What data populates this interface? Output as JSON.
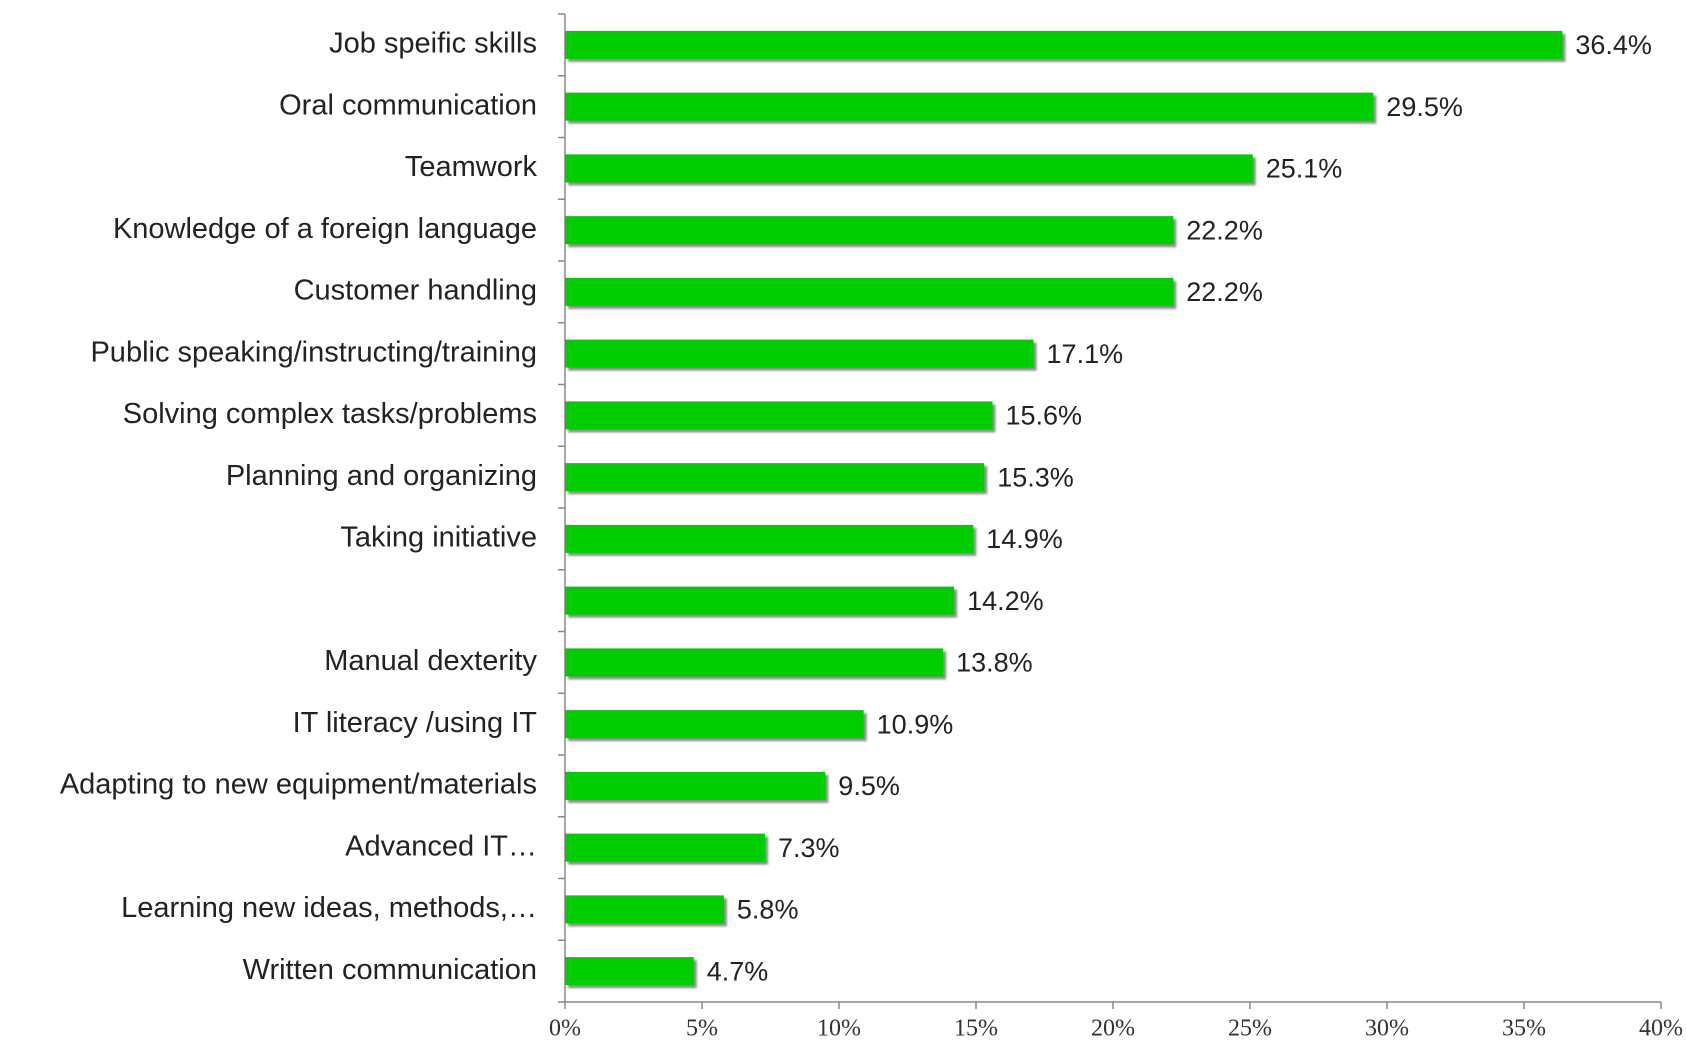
{
  "chart_data": {
    "type": "bar",
    "orientation": "horizontal",
    "categories": [
      "Job speific skills",
      "Oral communication",
      "Teamwork",
      "Knowledge of a foreign language",
      "Customer handling",
      "Public speaking/instructing/training",
      "Solving complex tasks/problems",
      "Planning and organizing",
      "Taking initiative",
      null,
      "Manual dexterity",
      "IT literacy /using IT",
      "Adapting to new equipment/materials",
      "Advanced IT…",
      "Learning new ideas, methods,…",
      "Written communication"
    ],
    "values": [
      36.4,
      29.5,
      25.1,
      22.2,
      22.2,
      17.1,
      15.6,
      15.3,
      14.9,
      14.2,
      13.8,
      10.9,
      9.5,
      7.3,
      5.8,
      4.7
    ],
    "value_labels": [
      "36.4%",
      "29.5%",
      "25.1%",
      "22.2%",
      "22.2%",
      "17.1%",
      "15.6%",
      "15.3%",
      "14.9%",
      "14.2%",
      "13.8%",
      "10.9%",
      "9.5%",
      "7.3%",
      "5.8%",
      "4.7%"
    ],
    "color": "#00cc00",
    "xlim": [
      0,
      40
    ],
    "xticks": [
      {
        "value": 0,
        "label": "0%"
      },
      {
        "value": 5,
        "label": "5%"
      },
      {
        "value": 10,
        "label": "10%"
      },
      {
        "value": 15,
        "label": "15%"
      },
      {
        "value": 20,
        "label": "20%"
      },
      {
        "value": 25,
        "label": "25%"
      },
      {
        "value": 30,
        "label": "30%"
      },
      {
        "value": 35,
        "label": "35%"
      },
      {
        "value": 40,
        "label": "40%"
      }
    ],
    "grid": false
  }
}
